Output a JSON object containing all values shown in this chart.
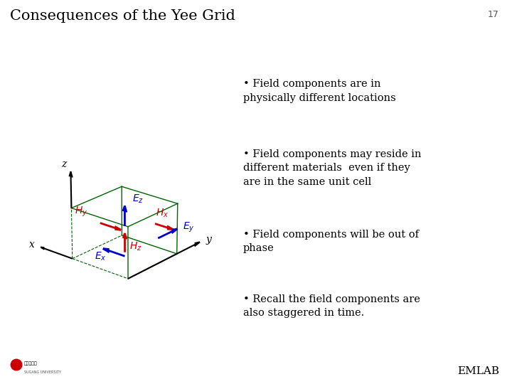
{
  "title": "Consequences of the Yee Grid",
  "slide_number": "17",
  "background_color": "#ffffff",
  "title_fontsize": 15,
  "bullet_points": [
    "• Field components are in\nphysically different locations",
    "• Field components may reside in\ndifferent materials  even if they\nare in the same unit cell",
    "• Field components will be out of\nphase",
    "• Recall the field components are\nalso staggered in time."
  ],
  "bullet_fontsize": 10.5,
  "bullet_color": "#000000",
  "cube_color": "#006400",
  "axis_color": "#000000",
  "E_color": "#0000cc",
  "H_color": "#cc0000",
  "logo_text": "EMLAB"
}
